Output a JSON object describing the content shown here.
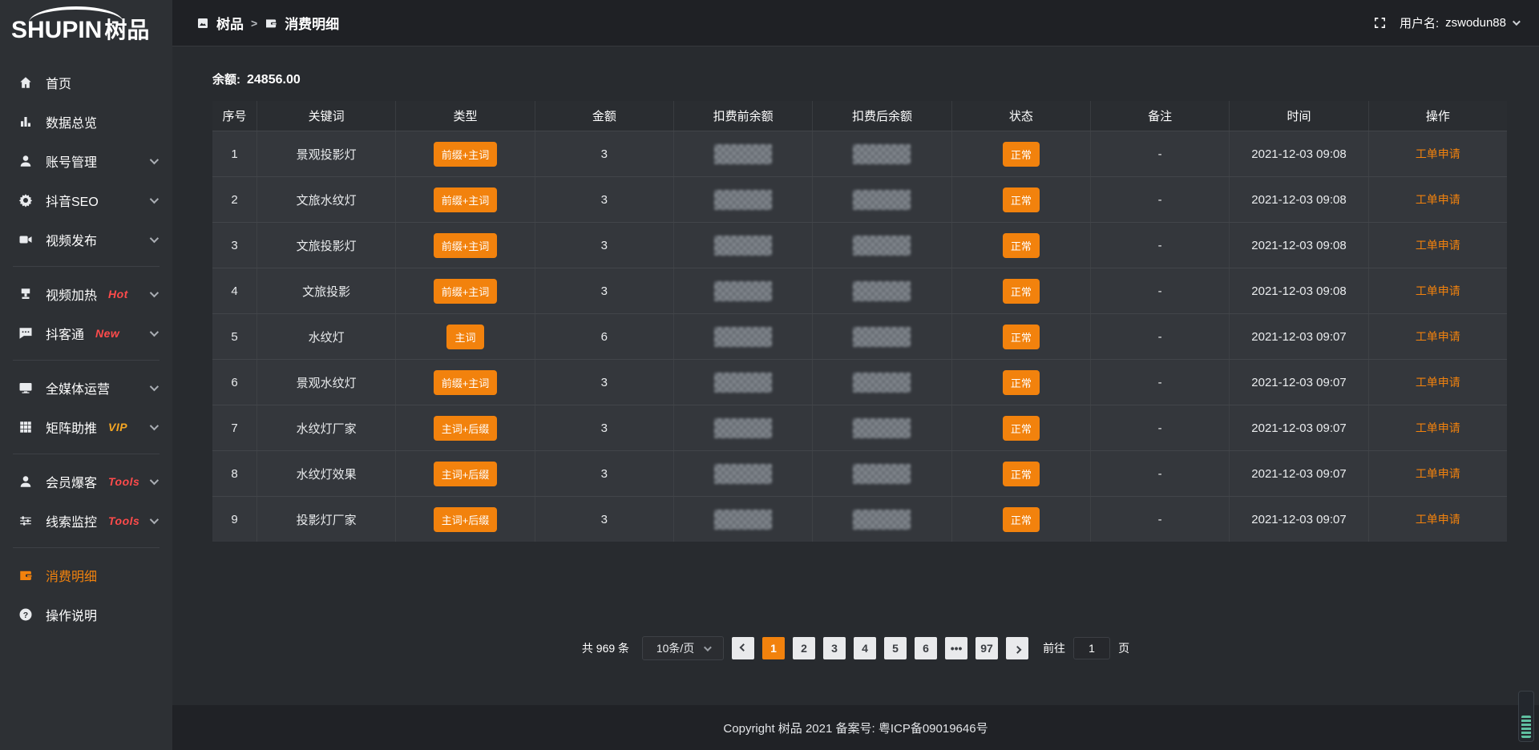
{
  "colors": {
    "accent": "#F2820D",
    "hot_red": "#FF4B4B",
    "vip_gold": "#F5A623"
  },
  "app": {
    "logo_en": "SHUPIN",
    "logo_cn": "树品"
  },
  "header": {
    "breadcrumb": {
      "home": "树品",
      "separator": ">",
      "current": "消费明细"
    },
    "user": {
      "label": "用户名:",
      "name": "zswodun88"
    }
  },
  "sidebar": {
    "items": [
      {
        "label": "首页",
        "icon": "home-icon"
      },
      {
        "label": "数据总览",
        "icon": "bar-chart-icon"
      },
      {
        "label": "账号管理",
        "icon": "user-icon",
        "chevron": true
      },
      {
        "label": "抖音SEO",
        "icon": "gear-icon",
        "chevron": true
      },
      {
        "label": "视频发布",
        "icon": "video-camera-icon",
        "chevron": true,
        "divider_after": true
      },
      {
        "label": "视频加热",
        "icon": "heat-icon",
        "badge": "Hot",
        "badge_color": "#FF4B4B",
        "chevron": true
      },
      {
        "label": "抖客通",
        "icon": "chat-icon",
        "badge": "New",
        "badge_color": "#FF4B4B",
        "chevron": true,
        "divider_after": true
      },
      {
        "label": "全媒体运营",
        "icon": "monitor-icon",
        "chevron": true
      },
      {
        "label": "矩阵助推",
        "icon": "grid-icon",
        "badge": "VIP",
        "badge_color": "#F5A623",
        "chevron": true,
        "divider_after": true
      },
      {
        "label": "会员爆客",
        "icon": "user-icon",
        "badge": "Tools",
        "badge_color": "#FF4B4B",
        "chevron": true
      },
      {
        "label": "线索监控",
        "icon": "sliders-icon",
        "badge": "Tools",
        "badge_color": "#FF4B4B",
        "chevron": true,
        "divider_after": true
      },
      {
        "label": "消费明细",
        "icon": "wallet-icon",
        "active": true
      },
      {
        "label": "操作说明",
        "icon": "question-icon"
      }
    ]
  },
  "main": {
    "balance": {
      "label": "余额:",
      "value": "24856.00"
    },
    "table": {
      "columns": [
        "序号",
        "关键词",
        "类型",
        "金额",
        "扣费前余额",
        "扣费后余额",
        "状态",
        "备注",
        "时间",
        "操作"
      ],
      "rows": [
        {
          "no": "1",
          "keyword": "景观投影灯",
          "type": "前缀+主词",
          "amount": "3",
          "balance_before_masked": true,
          "balance_after_masked": true,
          "status": "正常",
          "remark": "-",
          "time": "2021-12-03 09:08",
          "action": "工单申请"
        },
        {
          "no": "2",
          "keyword": "文旅水纹灯",
          "type": "前缀+主词",
          "amount": "3",
          "balance_before_masked": true,
          "balance_after_masked": true,
          "status": "正常",
          "remark": "-",
          "time": "2021-12-03 09:08",
          "action": "工单申请"
        },
        {
          "no": "3",
          "keyword": "文旅投影灯",
          "type": "前缀+主词",
          "amount": "3",
          "balance_before_masked": true,
          "balance_after_masked": true,
          "status": "正常",
          "remark": "-",
          "time": "2021-12-03 09:08",
          "action": "工单申请"
        },
        {
          "no": "4",
          "keyword": "文旅投影",
          "type": "前缀+主词",
          "amount": "3",
          "balance_before_masked": true,
          "balance_after_masked": true,
          "status": "正常",
          "remark": "-",
          "time": "2021-12-03 09:08",
          "action": "工单申请"
        },
        {
          "no": "5",
          "keyword": "水纹灯",
          "type": "主词",
          "amount": "6",
          "balance_before_masked": true,
          "balance_after_masked": true,
          "status": "正常",
          "remark": "-",
          "time": "2021-12-03 09:07",
          "action": "工单申请"
        },
        {
          "no": "6",
          "keyword": "景观水纹灯",
          "type": "前缀+主词",
          "amount": "3",
          "balance_before_masked": true,
          "balance_after_masked": true,
          "status": "正常",
          "remark": "-",
          "time": "2021-12-03 09:07",
          "action": "工单申请"
        },
        {
          "no": "7",
          "keyword": "水纹灯厂家",
          "type": "主词+后缀",
          "amount": "3",
          "balance_before_masked": true,
          "balance_after_masked": true,
          "status": "正常",
          "remark": "-",
          "time": "2021-12-03 09:07",
          "action": "工单申请"
        },
        {
          "no": "8",
          "keyword": "水纹灯效果",
          "type": "主词+后缀",
          "amount": "3",
          "balance_before_masked": true,
          "balance_after_masked": true,
          "status": "正常",
          "remark": "-",
          "time": "2021-12-03 09:07",
          "action": "工单申请"
        },
        {
          "no": "9",
          "keyword": "投影灯厂家",
          "type": "主词+后缀",
          "amount": "3",
          "balance_before_masked": true,
          "balance_after_masked": true,
          "status": "正常",
          "remark": "-",
          "time": "2021-12-03 09:07",
          "action": "工单申请"
        }
      ]
    },
    "pagination": {
      "total_label": "共 969 条",
      "page_size_label": "10条/页",
      "pages": [
        "1",
        "2",
        "3",
        "4",
        "5",
        "6",
        "•••",
        "97"
      ],
      "active_page": "1",
      "goto_label": "前往",
      "goto_value": "1",
      "goto_unit": "页"
    }
  },
  "footer": {
    "copyright": "Copyright 树品 2021 备案号: 粤ICP备09019646号"
  }
}
